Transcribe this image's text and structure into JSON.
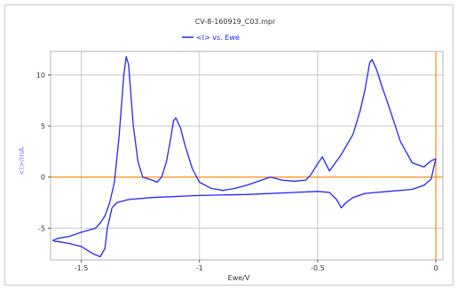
{
  "chart_data": {
    "type": "line",
    "title": "CV-8-160919_C03.mpr",
    "legend": [
      {
        "label": "<I> vs. Ewe",
        "color": "#2424ff"
      }
    ],
    "xlabel": "Ewe/V",
    "ylabel": "<I>/mA",
    "xlim": [
      -1.63,
      0.03
    ],
    "ylim": [
      -8.1,
      12.3
    ],
    "xticks": [
      {
        "v": -1.5,
        "label": "-1.5"
      },
      {
        "v": -1.0,
        "label": "-1"
      },
      {
        "v": -0.5,
        "label": "-0.5"
      },
      {
        "v": 0.0,
        "label": "0"
      }
    ],
    "yticks": [
      {
        "v": 10,
        "label": "10"
      },
      {
        "v": 5,
        "label": "5"
      },
      {
        "v": 0,
        "label": "0"
      },
      {
        "v": -5,
        "label": "-5"
      }
    ],
    "grid": true,
    "reference_lines": {
      "x": 0,
      "y": 0,
      "color": "#ff8c00"
    },
    "series": [
      {
        "name": "<I> vs. Ewe",
        "color": "#2424ff",
        "x": [
          0.0,
          -0.02,
          -0.05,
          -0.1,
          -0.15,
          -0.2,
          -0.23,
          -0.25,
          -0.27,
          -0.28,
          -0.3,
          -0.32,
          -0.35,
          -0.4,
          -0.45,
          -0.47,
          -0.48,
          -0.5,
          -0.53,
          -0.55,
          -0.6,
          -0.65,
          -0.7,
          -0.75,
          -0.8,
          -0.85,
          -0.9,
          -0.95,
          -1.0,
          -1.03,
          -1.06,
          -1.08,
          -1.1,
          -1.11,
          -1.12,
          -1.14,
          -1.16,
          -1.18,
          -1.2,
          -1.24,
          -1.26,
          -1.28,
          -1.3,
          -1.31,
          -1.32,
          -1.34,
          -1.36,
          -1.38,
          -1.4,
          -1.42,
          -1.44,
          -1.47,
          -1.5,
          -1.55,
          -1.6,
          -1.62,
          -1.61,
          -1.6,
          -1.55,
          -1.5,
          -1.45,
          -1.42,
          -1.4,
          -1.39,
          -1.37,
          -1.35,
          -1.3,
          -1.2,
          -1.0,
          -0.8,
          -0.6,
          -0.5,
          -0.45,
          -0.42,
          -0.4,
          -0.38,
          -0.35,
          -0.3,
          -0.2,
          -0.1,
          -0.05,
          -0.02,
          0.0
        ],
        "y": [
          1.8,
          1.6,
          1.0,
          1.4,
          3.5,
          7.0,
          9.0,
          10.5,
          11.5,
          11.2,
          8.5,
          6.5,
          4.2,
          2.2,
          0.6,
          1.5,
          2.0,
          1.3,
          0.2,
          -0.3,
          -0.4,
          -0.3,
          0.0,
          -0.4,
          -0.8,
          -1.1,
          -1.3,
          -1.1,
          -0.5,
          0.8,
          3.0,
          4.8,
          5.8,
          5.5,
          4.0,
          1.5,
          0.0,
          -0.5,
          -0.3,
          0.0,
          1.5,
          5.0,
          11.0,
          11.8,
          10.0,
          4.0,
          -0.5,
          -2.5,
          -3.8,
          -4.5,
          -5.0,
          -5.2,
          -5.4,
          -5.8,
          -6.0,
          -6.2,
          -6.3,
          -6.3,
          -6.5,
          -6.8,
          -7.5,
          -7.8,
          -7.0,
          -5.0,
          -3.0,
          -2.5,
          -2.2,
          -2.0,
          -1.8,
          -1.7,
          -1.5,
          -1.4,
          -1.5,
          -2.2,
          -3.0,
          -2.5,
          -2.0,
          -1.6,
          -1.4,
          -1.2,
          -0.8,
          -0.2,
          1.8
        ]
      }
    ]
  }
}
